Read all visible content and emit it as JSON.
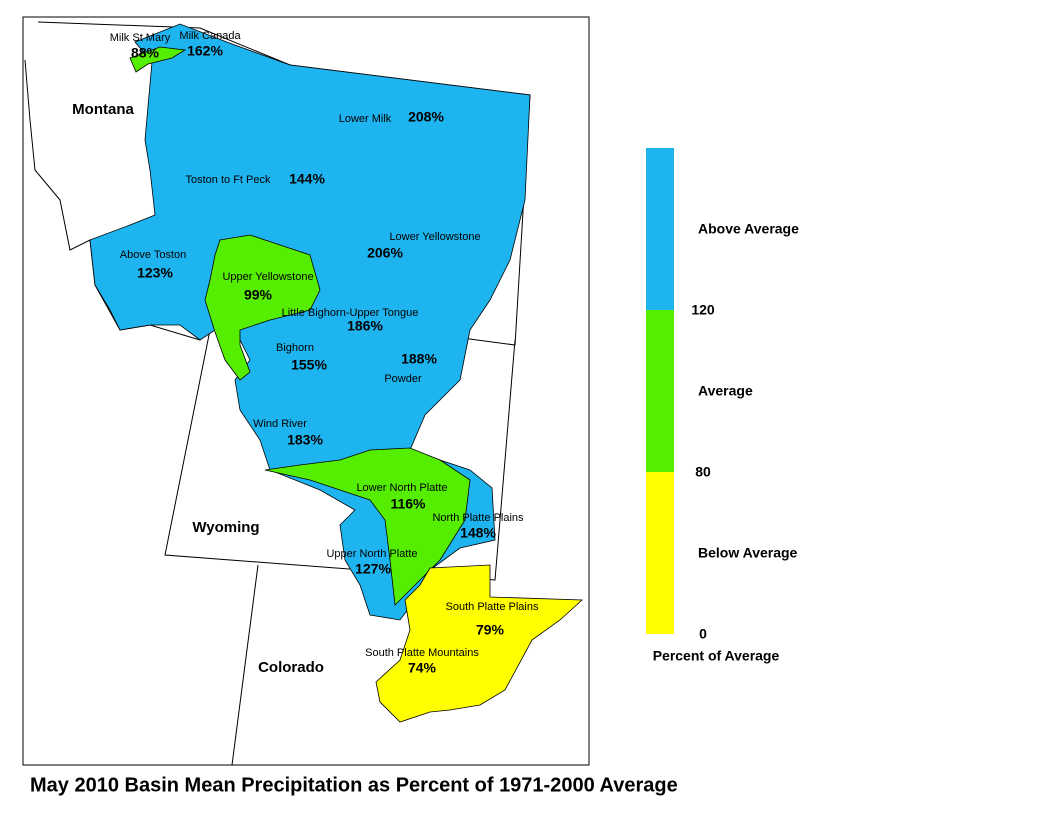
{
  "map": {
    "title": "May 2010 Basin Mean Precipitation as Percent of 1971-2000 Average",
    "states": [
      "Montana",
      "Wyoming",
      "Colorado"
    ],
    "basins": [
      {
        "name": "Milk St Mary",
        "value": "88%"
      },
      {
        "name": "Milk Canada",
        "value": "162%"
      },
      {
        "name": "Lower Milk",
        "value": "208%"
      },
      {
        "name": "Toston to Ft Peck",
        "value": "144%"
      },
      {
        "name": "Above Toston",
        "value": "123%"
      },
      {
        "name": "Upper Yellowstone",
        "value": "99%"
      },
      {
        "name": "Lower Yellowstone",
        "value": "206%"
      },
      {
        "name": "Little Bighorn-Upper Tongue",
        "value": "186%"
      },
      {
        "name": "Bighorn",
        "value": "155%"
      },
      {
        "name": "Powder",
        "value": "188%"
      },
      {
        "name": "Wind River",
        "value": "183%"
      },
      {
        "name": "Lower North Platte",
        "value": "116%"
      },
      {
        "name": "North Platte Plains",
        "value": "148%"
      },
      {
        "name": "Upper North Platte",
        "value": "127%"
      },
      {
        "name": "South Platte Plains",
        "value": "79%"
      },
      {
        "name": "South Platte Mountains",
        "value": "74%"
      }
    ],
    "legend": {
      "title": "Percent of Average",
      "classes": [
        {
          "label": "Above Average",
          "color": "#1eb4ef"
        },
        {
          "label": "Average",
          "color": "#55ee00"
        },
        {
          "label": "Below Average",
          "color": "#ffff00"
        }
      ],
      "breaks": [
        "120",
        "80",
        "0"
      ]
    }
  }
}
